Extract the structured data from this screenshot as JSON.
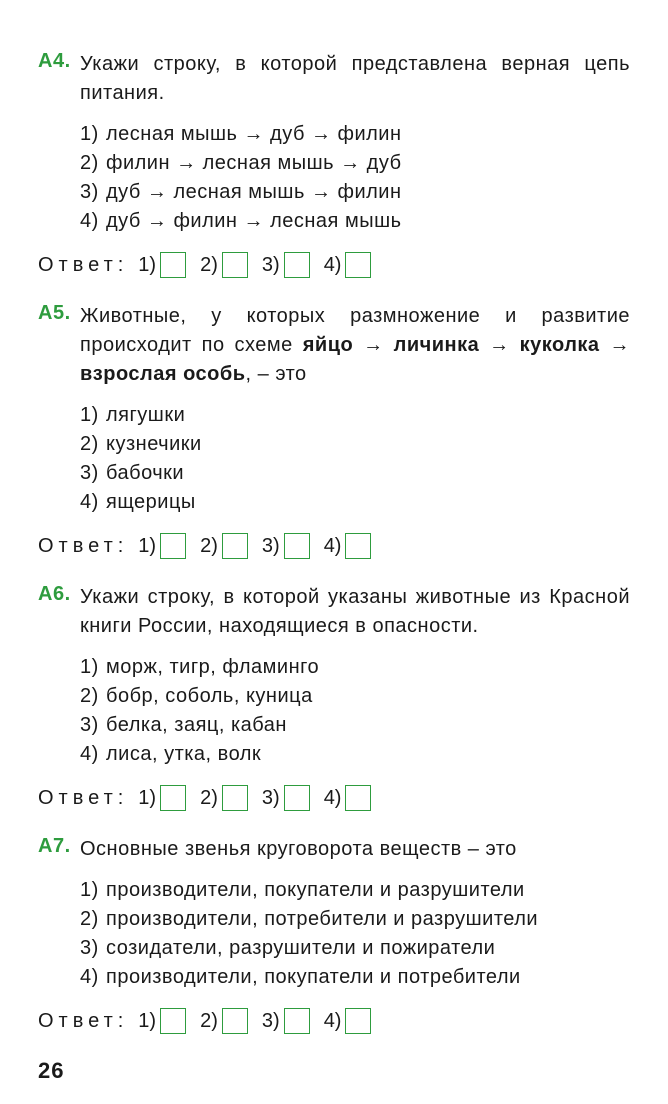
{
  "colors": {
    "accent": "#2e9c3e",
    "text": "#1a1a1a",
    "background": "#ffffff"
  },
  "typography": {
    "base_font_size": 20,
    "label_font_size": 20,
    "page_number_font_size": 22
  },
  "arrow_glyph": "→",
  "answer_label": "Ответ:",
  "answer_numbers": [
    "1)",
    "2)",
    "3)",
    "4)"
  ],
  "page_number": "26",
  "questions": [
    {
      "label": "А4.",
      "text_html": "Укажи строку, в которой представлена верная цепь питания.",
      "options": [
        "лесная мышь → дуб → филин",
        "филин → лесная мышь → дуб",
        "дуб → лесная мышь → филин",
        "дуб → филин → лесная мышь"
      ]
    },
    {
      "label": "А5.",
      "text_parts": [
        {
          "t": "Животные, у которых размножение и развитие происходит по схеме ",
          "b": false
        },
        {
          "t": "яйцо",
          "b": true
        },
        {
          "t": " → ",
          "b": false
        },
        {
          "t": "личинка",
          "b": true
        },
        {
          "t": " → ",
          "b": false
        },
        {
          "t": "куколка",
          "b": true
        },
        {
          "t": " → ",
          "b": false
        },
        {
          "t": "взрослая особь",
          "b": true
        },
        {
          "t": ", – это",
          "b": false
        }
      ],
      "options": [
        "лягушки",
        "кузнечики",
        "бабочки",
        "ящерицы"
      ]
    },
    {
      "label": "А6.",
      "text_html": "Укажи строку, в которой указаны животные из Красной книги России, находящиеся в опасности.",
      "options": [
        "морж, тигр, фламинго",
        "бобр, соболь, куница",
        "белка, заяц, кабан",
        "лиса, утка, волк"
      ]
    },
    {
      "label": "А7.",
      "text_html": "Основные звенья круговорота веществ – это",
      "options": [
        "производители, покупатели и разрушители",
        "производители, потребители и разрушители",
        "созидатели, разрушители и пожиратели",
        "производители, покупатели и потребители"
      ]
    }
  ]
}
